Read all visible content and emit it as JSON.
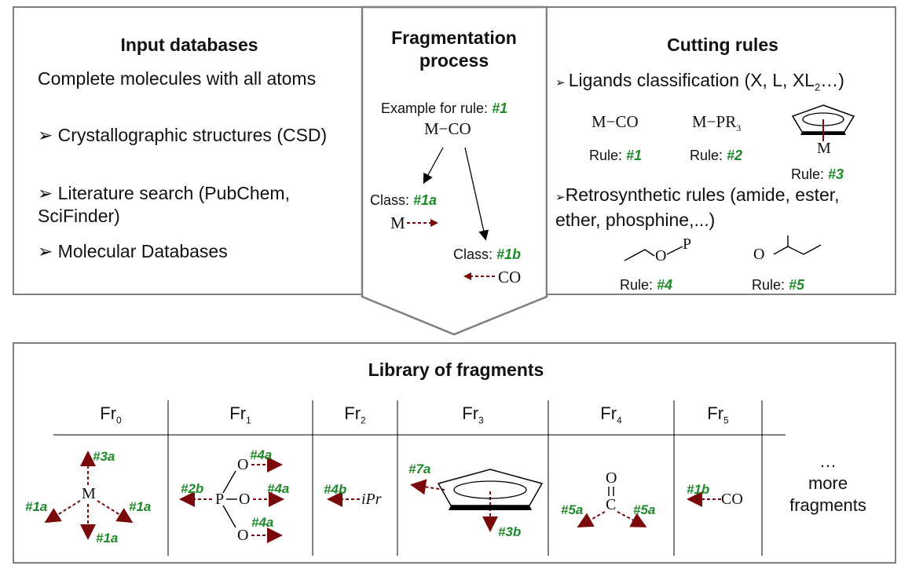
{
  "input_panel": {
    "title": "Input databases",
    "intro": "Complete molecules with all atoms",
    "items": [
      "Crystallographic structures (CSD)",
      "Literature search (PubChem, SciFinder)",
      "Molecular Databases"
    ]
  },
  "fragmentation_panel": {
    "title_line1": "Fragmentation",
    "title_line2": "process",
    "example_prefix": "Example for rule: ",
    "example_rule": "#1",
    "formula": "M−CO",
    "class_prefix": "Class: ",
    "class_a": "#1a",
    "class_b": "#1b",
    "frag_metal": "M",
    "frag_co": "CO"
  },
  "cutting_panel": {
    "title": "Cutting rules",
    "ligands_text": "Ligands classification (X, L, XL",
    "ligands_sub": "2",
    "ligands_end": "…)",
    "rule_prefix": "Rule: ",
    "rules": [
      "#1",
      "#2",
      "#3",
      "#4",
      "#5"
    ],
    "formula_mco": "M−CO",
    "formula_mpr": "M−PR",
    "formula_mpr_sub": "3",
    "ring_metal": "M",
    "retro_line1": "Retrosynthetic rules (amide, ester,",
    "retro_line2": "ether, phosphine,...)",
    "atom_o": "O",
    "atom_p": "P"
  },
  "library": {
    "title": "Library of fragments",
    "headers": [
      {
        "base": "Fr",
        "sub": "0"
      },
      {
        "base": "Fr",
        "sub": "1"
      },
      {
        "base": "Fr",
        "sub": "2"
      },
      {
        "base": "Fr",
        "sub": "3"
      },
      {
        "base": "Fr",
        "sub": "4"
      },
      {
        "base": "Fr",
        "sub": "5"
      }
    ],
    "fr0": {
      "atom": "M",
      "tags": [
        "#3a",
        "#1a",
        "#1a",
        "#1a"
      ]
    },
    "fr1": {
      "p": "P",
      "o": "O",
      "tags": [
        "#2b",
        "#4a",
        "#4a",
        "#4a"
      ]
    },
    "fr2": {
      "group": "iPr",
      "tag": "#4b"
    },
    "fr3": {
      "tags": [
        "#7a",
        "#3b"
      ]
    },
    "fr4": {
      "o": "O",
      "c": "C",
      "tags": [
        "#5a",
        "#5a"
      ]
    },
    "fr5": {
      "group": "CO",
      "tag": "#1b"
    },
    "more": [
      "…",
      "more",
      "fragments"
    ]
  },
  "colors": {
    "border": "#7f7f7f",
    "tag_green": "#1e8a2a",
    "arrow_red": "#7a0a0a"
  }
}
